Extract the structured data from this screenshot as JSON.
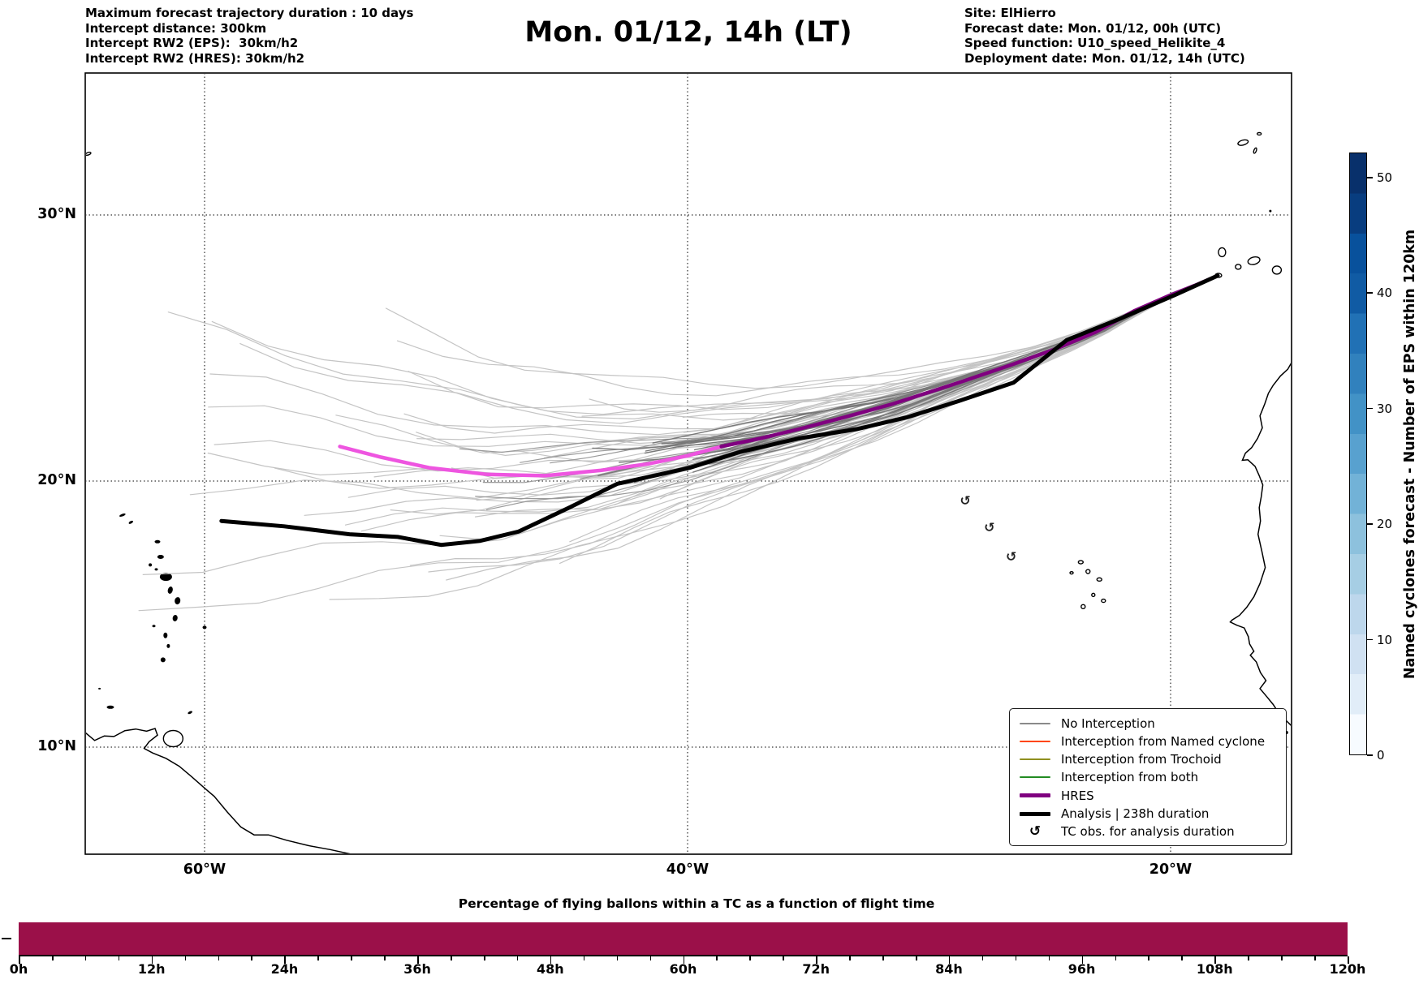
{
  "header": {
    "left_lines": [
      "Maximum forecast trajectory duration : 10 days",
      "Intercept distance: 300km",
      "Intercept RW2 (EPS):  30km/h2",
      "Intercept RW2 (HRES): 30km/h2"
    ],
    "title": "Mon. 01/12, 14h (LT)",
    "right_lines": [
      "Site: ElHierro",
      "Forecast date: Mon. 01/12, 00h (UTC)",
      "Speed function: U10_speed_Helikite_4",
      "Deployment date: Mon. 01/12, 14h (UTC)"
    ]
  },
  "map": {
    "extent": {
      "lon": [
        -64.9,
        -15.0
      ],
      "lat": [
        6.0,
        35.3
      ]
    },
    "x_ticks": [
      {
        "lon": -60,
        "label": "60°W"
      },
      {
        "lon": -40,
        "label": "40°W"
      },
      {
        "lon": -20,
        "label": "20°W"
      }
    ],
    "y_ticks": [
      {
        "lat": 30,
        "label": "30°N"
      },
      {
        "lat": 20,
        "label": "20°N"
      },
      {
        "lat": 10,
        "label": "10°N"
      }
    ],
    "legend": {
      "items": [
        {
          "label": "No Interception",
          "color": "#8a8a8a",
          "lw": 2
        },
        {
          "label": "Interception from Named cyclone",
          "color": "#ff4500",
          "lw": 2
        },
        {
          "label": "Interception from Trochoid",
          "color": "#8f8f1f",
          "lw": 2
        },
        {
          "label": "Interception from both",
          "color": "#228b22",
          "lw": 2
        },
        {
          "label": "HRES",
          "color": "#800080",
          "lw": 5
        },
        {
          "label": "Analysis | 238h duration",
          "color": "#000000",
          "lw": 5
        },
        {
          "label": "TC obs. for analysis duration",
          "marker": "↺",
          "color": "#000000"
        }
      ]
    },
    "tc_obs_positions": [
      [
        -26.6,
        17.0
      ],
      [
        -27.5,
        18.1
      ],
      [
        -28.5,
        19.1
      ]
    ],
    "coastlines": {
      "africa": [
        [
          -14.99,
          24.45
        ],
        [
          -15.15,
          24.2
        ],
        [
          -15.45,
          23.95
        ],
        [
          -15.75,
          23.6
        ],
        [
          -15.95,
          23.3
        ],
        [
          -16.1,
          22.9
        ],
        [
          -16.3,
          22.45
        ],
        [
          -16.2,
          22.0
        ],
        [
          -16.4,
          21.6
        ],
        [
          -16.65,
          21.25
        ],
        [
          -16.9,
          21.05
        ],
        [
          -17.03,
          20.78
        ],
        [
          -16.8,
          20.8
        ],
        [
          -16.5,
          20.55
        ],
        [
          -16.33,
          20.2
        ],
        [
          -16.18,
          19.85
        ],
        [
          -16.25,
          19.4
        ],
        [
          -16.33,
          19.0
        ],
        [
          -16.28,
          18.5
        ],
        [
          -16.38,
          18.0
        ],
        [
          -16.22,
          17.35
        ],
        [
          -16.08,
          16.75
        ],
        [
          -16.3,
          16.15
        ],
        [
          -16.55,
          15.65
        ],
        [
          -16.85,
          15.25
        ],
        [
          -17.15,
          14.95
        ],
        [
          -17.45,
          14.78
        ],
        [
          -17.53,
          14.7
        ],
        [
          -17.25,
          14.58
        ],
        [
          -16.95,
          14.48
        ],
        [
          -16.78,
          14.15
        ],
        [
          -16.73,
          13.88
        ],
        [
          -16.55,
          13.6
        ],
        [
          -16.7,
          13.45
        ],
        [
          -16.45,
          13.2
        ],
        [
          -16.28,
          12.8
        ],
        [
          -16.05,
          12.5
        ],
        [
          -16.3,
          12.2
        ],
        [
          -16.02,
          11.9
        ],
        [
          -15.75,
          11.6
        ],
        [
          -15.5,
          11.25
        ],
        [
          -15.22,
          11.0
        ],
        [
          -14.99,
          10.8
        ]
      ],
      "south_america": [
        [
          -64.94,
          10.55
        ],
        [
          -64.55,
          10.25
        ],
        [
          -64.15,
          10.42
        ],
        [
          -63.75,
          10.4
        ],
        [
          -63.3,
          10.62
        ],
        [
          -62.85,
          10.68
        ],
        [
          -62.4,
          10.6
        ],
        [
          -62.05,
          10.7
        ],
        [
          -61.95,
          10.45
        ],
        [
          -62.3,
          10.2
        ],
        [
          -62.5,
          9.95
        ],
        [
          -62.15,
          9.78
        ],
        [
          -61.6,
          9.58
        ],
        [
          -61.05,
          9.28
        ],
        [
          -60.55,
          8.9
        ],
        [
          -60.05,
          8.5
        ],
        [
          -59.6,
          8.15
        ],
        [
          -59.05,
          7.55
        ],
        [
          -58.5,
          7.0
        ],
        [
          -57.95,
          6.7
        ],
        [
          -57.35,
          6.7
        ],
        [
          -56.6,
          6.5
        ],
        [
          -55.7,
          6.3
        ],
        [
          -54.8,
          6.15
        ],
        [
          -53.8,
          5.95
        ],
        [
          -52.9,
          5.7
        ]
      ],
      "islands_filled": [
        {
          "lon": -63.4,
          "lat": 18.72,
          "w": 8,
          "h": 3,
          "rot": -20
        },
        {
          "lon": -63.05,
          "lat": 18.45,
          "w": 6,
          "h": 3,
          "rot": -30
        },
        {
          "lon": -61.95,
          "lat": 17.72,
          "w": 7,
          "h": 4,
          "rot": 0
        },
        {
          "lon": -61.82,
          "lat": 17.15,
          "w": 8,
          "h": 5,
          "rot": 0
        },
        {
          "lon": -62.25,
          "lat": 16.85,
          "w": 4,
          "h": 4,
          "rot": 0
        },
        {
          "lon": -61.6,
          "lat": 16.4,
          "w": 15,
          "h": 10,
          "rot": 0
        },
        {
          "lon": -62.0,
          "lat": 16.68,
          "w": 4,
          "h": 3,
          "rot": 0
        },
        {
          "lon": -61.42,
          "lat": 15.9,
          "w": 6,
          "h": 9,
          "rot": 15
        },
        {
          "lon": -61.12,
          "lat": 15.5,
          "w": 7,
          "h": 9,
          "rot": 10
        },
        {
          "lon": -61.22,
          "lat": 14.85,
          "w": 6,
          "h": 8,
          "rot": 10
        },
        {
          "lon": -62.1,
          "lat": 14.55,
          "w": 4,
          "h": 3,
          "rot": 0
        },
        {
          "lon": -61.62,
          "lat": 14.2,
          "w": 5,
          "h": 7,
          "rot": 0
        },
        {
          "lon": -61.5,
          "lat": 13.8,
          "w": 4,
          "h": 5,
          "rot": 0
        },
        {
          "lon": -61.72,
          "lat": 13.28,
          "w": 6,
          "h": 6,
          "rot": 0
        },
        {
          "lon": -60.0,
          "lat": 14.5,
          "w": 5,
          "h": 4,
          "rot": 0
        },
        {
          "lon": -63.9,
          "lat": 11.5,
          "w": 9,
          "h": 4,
          "rot": 0
        },
        {
          "lon": -64.35,
          "lat": 12.2,
          "w": 3,
          "h": 2,
          "rot": 0
        },
        {
          "lon": -60.6,
          "lat": 11.3,
          "w": 6,
          "h": 3,
          "rot": -25
        },
        {
          "lon": -15.87,
          "lat": 30.15,
          "w": 3,
          "h": 3,
          "rot": 0
        },
        {
          "lon": -15.85,
          "lat": 11.25,
          "w": 5,
          "h": 4,
          "rot": 0
        },
        {
          "lon": -15.6,
          "lat": 11.05,
          "w": 4,
          "h": 3,
          "rot": 0
        },
        {
          "lon": -15.45,
          "lat": 10.8,
          "w": 5,
          "h": 3,
          "rot": 0
        },
        {
          "lon": -15.7,
          "lat": 10.65,
          "w": 3,
          "h": 3,
          "rot": 0
        },
        {
          "lon": -15.2,
          "lat": 10.55,
          "w": 4,
          "h": 4,
          "rot": 0
        }
      ],
      "islands_outline": [
        {
          "lon": -61.3,
          "lat": 10.32,
          "w": 24,
          "h": 20,
          "rot": 0
        },
        {
          "lon": -17.87,
          "lat": 28.6,
          "w": 9,
          "h": 11,
          "rot": 0
        },
        {
          "lon": -18.02,
          "lat": 27.73,
          "w": 8,
          "h": 5,
          "rot": 0
        },
        {
          "lon": -17.2,
          "lat": 28.05,
          "w": 7,
          "h": 6,
          "rot": 0
        },
        {
          "lon": -16.55,
          "lat": 28.28,
          "w": 15,
          "h": 9,
          "rot": -15
        },
        {
          "lon": -15.6,
          "lat": 27.93,
          "w": 11,
          "h": 10,
          "rot": 0
        },
        {
          "lon": -17.0,
          "lat": 32.72,
          "w": 13,
          "h": 6,
          "rot": -15
        },
        {
          "lon": -16.33,
          "lat": 33.05,
          "w": 5,
          "h": 3,
          "rot": 0
        },
        {
          "lon": -16.5,
          "lat": 32.42,
          "w": 3,
          "h": 7,
          "rot": 20
        },
        {
          "lon": -64.82,
          "lat": 32.3,
          "w": 7,
          "h": 3,
          "rot": -20
        },
        {
          "lon": -23.72,
          "lat": 16.95,
          "w": 6,
          "h": 4,
          "rot": 0
        },
        {
          "lon": -23.42,
          "lat": 16.6,
          "w": 5,
          "h": 5,
          "rot": 0
        },
        {
          "lon": -22.95,
          "lat": 16.3,
          "w": 6,
          "h": 4,
          "rot": 0
        },
        {
          "lon": -23.2,
          "lat": 15.72,
          "w": 4,
          "h": 4,
          "rot": 0
        },
        {
          "lon": -22.78,
          "lat": 15.5,
          "w": 5,
          "h": 4,
          "rot": 0
        },
        {
          "lon": -23.62,
          "lat": 15.28,
          "w": 5,
          "h": 5,
          "rot": 0
        },
        {
          "lon": -24.1,
          "lat": 16.55,
          "w": 4,
          "h": 3,
          "rot": 0
        }
      ]
    }
  },
  "colorbar": {
    "label": "Named cyclones forecast - Number of EPS within 120km",
    "ticks": [
      0,
      10,
      20,
      30,
      40,
      50
    ],
    "vmin": 0,
    "vmax": 52,
    "colormap": "Blues",
    "stops": [
      "#f7fbff",
      "#e1edf8",
      "#d0e1f2",
      "#bdd7ec",
      "#a6cee4",
      "#8dc1dd",
      "#72b2d7",
      "#58a1cf",
      "#4292c6",
      "#3181bd",
      "#2171b5",
      "#105ba4",
      "#08519c",
      "#083d7f",
      "#08306b"
    ]
  },
  "bottom_chart": {
    "title": "Percentage of flying ballons within a TC as a function of flight time",
    "x_tick_labels": [
      "0h",
      "12h",
      "24h",
      "36h",
      "48h",
      "60h",
      "72h",
      "84h",
      "96h",
      "108h",
      "120h"
    ],
    "bar_color": "#9b1049"
  },
  "chart_data": [
    {
      "type": "line",
      "name": "forecast-trajectory-map",
      "title": "Mon. 01/12, 14h (LT)",
      "x_axis": "longitude_deg",
      "y_axis": "latitude_deg",
      "xlim": [
        -64.9,
        -15.0
      ],
      "ylim": [
        6.0,
        35.3
      ],
      "grid": true,
      "legend_position": "lower right",
      "series": [
        {
          "name": "HRES",
          "color": "#800080",
          "linewidth": 4.5,
          "points": [
            [
              -18.05,
              27.72
            ],
            [
              -19.0,
              27.35
            ],
            [
              -20.1,
              26.95
            ],
            [
              -21.5,
              26.4
            ],
            [
              -23.1,
              25.6
            ],
            [
              -24.8,
              24.95
            ],
            [
              -26.5,
              24.4
            ],
            [
              -28.6,
              23.75
            ],
            [
              -31.5,
              22.9
            ],
            [
              -33.5,
              22.4
            ],
            [
              -35.4,
              21.95
            ],
            [
              -37.0,
              21.6
            ],
            [
              -38.6,
              21.3
            ]
          ]
        },
        {
          "name": "HRES (pre-interception segment)",
          "color": "#ee55e0",
          "linewidth": 4.5,
          "points": [
            [
              -38.6,
              21.3
            ],
            [
              -40.0,
              20.95
            ],
            [
              -41.6,
              20.65
            ],
            [
              -43.6,
              20.4
            ],
            [
              -45.9,
              20.2
            ],
            [
              -48.3,
              20.25
            ],
            [
              -50.7,
              20.5
            ],
            [
              -52.7,
              20.9
            ],
            [
              -54.4,
              21.3
            ]
          ]
        },
        {
          "name": "Analysis | 238h duration",
          "color": "#000000",
          "linewidth": 5,
          "points": [
            [
              -18.05,
              27.72
            ],
            [
              -19.8,
              27.0
            ],
            [
              -22.1,
              26.1
            ],
            [
              -24.3,
              25.3
            ],
            [
              -26.5,
              23.7
            ],
            [
              -28.8,
              23.0
            ],
            [
              -30.9,
              22.4
            ],
            [
              -33.0,
              21.95
            ],
            [
              -35.4,
              21.6
            ],
            [
              -37.8,
              21.1
            ],
            [
              -39.9,
              20.5
            ],
            [
              -42.9,
              19.9
            ],
            [
              -44.9,
              19.0
            ],
            [
              -47.0,
              18.1
            ],
            [
              -48.6,
              17.75
            ],
            [
              -50.2,
              17.6
            ],
            [
              -52.0,
              17.9
            ],
            [
              -54.0,
              18.0
            ],
            [
              -56.7,
              18.3
            ],
            [
              -59.3,
              18.5
            ]
          ]
        },
        {
          "name": "EPS members (No Interception)",
          "generated": true,
          "origin": [
            -18.05,
            27.72
          ],
          "color": "#c4c4c4",
          "mid_color": "#9a9a9a",
          "core_color": "#787878",
          "count": 46,
          "mid_count": 7,
          "core_count": 14,
          "seed": 77,
          "core_path": [
            [
              -18.05,
              27.72
            ],
            [
              -20,
              27.0
            ],
            [
              -23,
              25.6
            ],
            [
              -26.5,
              24.4
            ],
            [
              -31.5,
              22.9
            ],
            [
              -35.4,
              22.0
            ],
            [
              -38.6,
              21.3
            ],
            [
              -43,
              20.6
            ],
            [
              -48,
              20.35
            ],
            [
              -53,
              20.7
            ],
            [
              -58,
              21.1
            ],
            [
              -64.9,
              21.45
            ]
          ]
        }
      ],
      "tc_obs": [
        [
          -26.6,
          17.0
        ],
        [
          -27.5,
          18.1
        ],
        [
          -28.5,
          19.1
        ]
      ]
    },
    {
      "type": "bar",
      "title": "Percentage of flying ballons within a TC as a function of flight time",
      "x_unit": "hours",
      "x_ticks": [
        0,
        12,
        24,
        36,
        48,
        60,
        72,
        84,
        96,
        108,
        120
      ],
      "minor_tick_step_hours": 3,
      "bars": [
        {
          "x_start": 0,
          "x_end": 120,
          "value_percent": 100
        }
      ],
      "color": "#9b1049",
      "ylim": [
        0,
        100
      ]
    },
    {
      "type": "colorbar",
      "label": "Named cyclones forecast - Number of EPS within 120km",
      "ticks": [
        0,
        10,
        20,
        30,
        40,
        50
      ],
      "range": [
        0,
        52
      ],
      "colormap": "Blues"
    }
  ]
}
